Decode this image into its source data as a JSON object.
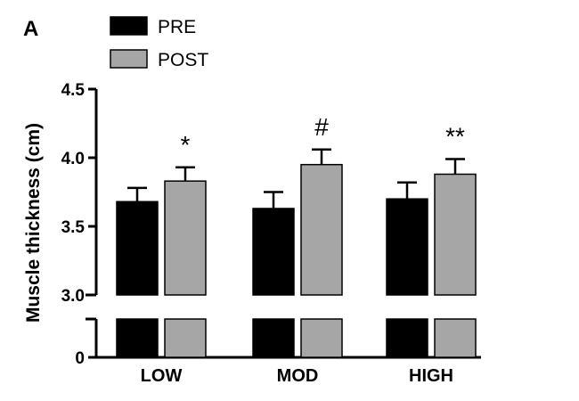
{
  "panel_label": "A",
  "chart_data": {
    "type": "bar",
    "categories": [
      "LOW",
      "MOD",
      "HIGH"
    ],
    "series": [
      {
        "name": "PRE",
        "values": [
          3.68,
          3.63,
          3.7
        ],
        "errors": [
          0.1,
          0.12,
          0.12
        ],
        "color": "#000000"
      },
      {
        "name": "POST",
        "values": [
          3.83,
          3.95,
          3.88
        ],
        "errors": [
          0.1,
          0.11,
          0.11
        ],
        "color": "#a6a6a6"
      }
    ],
    "annotations": [
      "*",
      "#",
      "**"
    ],
    "ylabel": "Muscle thickness (cm)",
    "xlabel": "",
    "ylim": [
      3.0,
      4.5
    ],
    "yticks": [
      "3.0",
      "3.5",
      "4.0",
      "4.5"
    ],
    "broken_axis": true,
    "lower_segment_tick": "0",
    "legend_position": "top-left",
    "grid": false
  }
}
